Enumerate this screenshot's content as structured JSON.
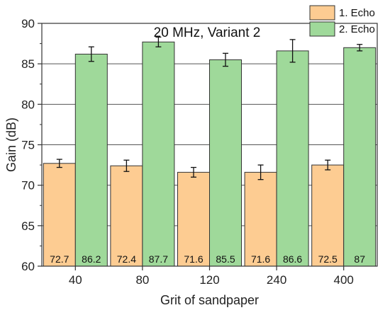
{
  "chart_data": {
    "type": "bar",
    "title": "20 MHz, Variant 2",
    "xlabel": "Grit of sandpaper",
    "ylabel": "Gain (dB)",
    "ylim": [
      60,
      90
    ],
    "yticks": [
      60,
      65,
      70,
      75,
      80,
      85,
      90
    ],
    "categories": [
      "40",
      "80",
      "120",
      "240",
      "400"
    ],
    "grid": "horizontal major lines",
    "legend_position": "top-right",
    "series": [
      {
        "name": "1. Echo",
        "color": "#fdcc92",
        "values": [
          72.7,
          72.4,
          71.6,
          71.6,
          72.5
        ],
        "value_labels": [
          "72.7",
          "72.4",
          "71.6",
          "71.6",
          "72.5"
        ],
        "error": [
          0.5,
          0.7,
          0.6,
          0.9,
          0.6
        ]
      },
      {
        "name": "2. Echo",
        "color": "#9fd99a",
        "values": [
          86.2,
          87.7,
          85.5,
          86.6,
          87
        ],
        "value_labels": [
          "86.2",
          "87.7",
          "85.5",
          "86.6",
          "87"
        ],
        "error": [
          0.9,
          0.6,
          0.8,
          1.4,
          0.4
        ]
      }
    ]
  }
}
